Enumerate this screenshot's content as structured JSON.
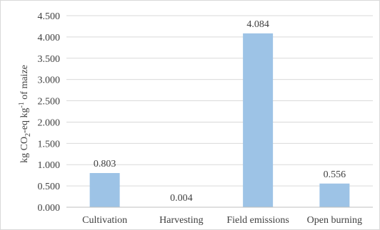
{
  "chart_data": {
    "type": "bar",
    "categories": [
      "Cultivation",
      "Harvesting",
      "Field emissions",
      "Open burning"
    ],
    "values": [
      0.803,
      0.004,
      4.084,
      0.556
    ],
    "data_labels": [
      "0.803",
      "0.004",
      "4.084",
      "0.556"
    ],
    "ylabel_parts": {
      "a": "kg CO",
      "sub": "2",
      "b": "-eq kg",
      "sup": "-1",
      "c": " of maize"
    },
    "ylim": [
      0,
      4.5
    ],
    "yticks": [
      "0.000",
      "0.500",
      "1.000",
      "1.500",
      "2.000",
      "2.500",
      "3.000",
      "3.500",
      "4.000",
      "4.500"
    ],
    "ytick_values": [
      0,
      0.5,
      1.0,
      1.5,
      2.0,
      2.5,
      3.0,
      3.5,
      4.0,
      4.5
    ],
    "grid": true,
    "bar_color": "#9dc3e6"
  }
}
